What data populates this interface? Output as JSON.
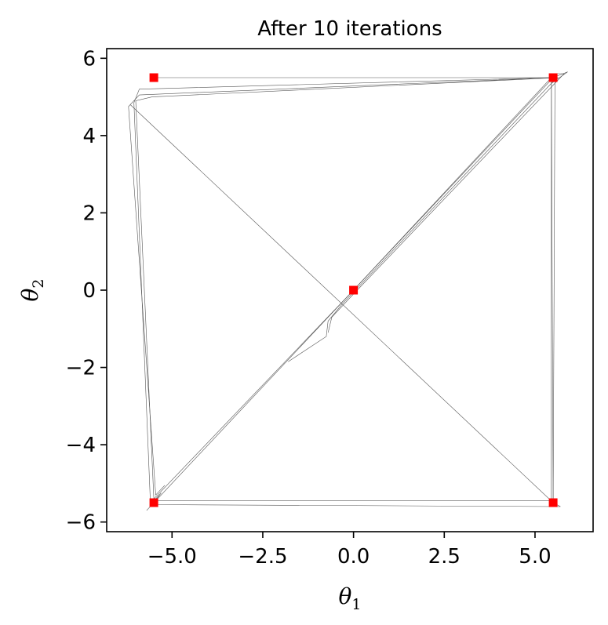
{
  "chart_data": {
    "type": "scatter",
    "title": "After 10 iterations",
    "xlabel": "θ",
    "xlabel_subscript": "1",
    "ylabel": "θ",
    "ylabel_subscript": "2",
    "xlim": [
      -6.8,
      6.6
    ],
    "ylim": [
      -6.25,
      6.25
    ],
    "grid": false,
    "x_ticks": [
      -5.0,
      -2.5,
      0.0,
      2.5,
      5.0
    ],
    "x_tick_labels": [
      "−5.0",
      "−2.5",
      "0.0",
      "2.5",
      "5.0"
    ],
    "y_ticks": [
      -6,
      -4,
      -2,
      0,
      2,
      4,
      6
    ],
    "y_tick_labels": [
      "−6",
      "−4",
      "−2",
      "0",
      "2",
      "4",
      "6"
    ],
    "marker_color": "#ff0000",
    "line_color": "#555555",
    "points": [
      {
        "x": -5.5,
        "y": 5.5
      },
      {
        "x": 5.5,
        "y": 5.5
      },
      {
        "x": 0.0,
        "y": 0.0
      },
      {
        "x": -5.5,
        "y": -5.5
      },
      {
        "x": 5.5,
        "y": -5.5
      }
    ],
    "trajectories": [
      [
        [
          -5.5,
          5.5
        ],
        [
          5.5,
          5.5
        ],
        [
          5.9,
          5.65
        ],
        [
          5.45,
          5.35
        ],
        [
          5.45,
          -5.45
        ],
        [
          -5.5,
          -5.45
        ],
        [
          -5.3,
          -5.25
        ],
        [
          -5.5,
          -5.5
        ]
      ],
      [
        [
          5.5,
          5.5
        ],
        [
          -5.9,
          5.05
        ],
        [
          -6.2,
          4.75
        ],
        [
          -5.45,
          -5.3
        ],
        [
          -5.2,
          -5.05
        ]
      ],
      [
        [
          -6.15,
          4.8
        ],
        [
          5.5,
          -5.5
        ],
        [
          5.45,
          5.5
        ],
        [
          -5.9,
          5.2
        ],
        [
          -6.05,
          4.85
        ],
        [
          -5.6,
          -5.4
        ],
        [
          -5.55,
          -5.5
        ]
      ],
      [
        [
          -5.45,
          -5.55
        ],
        [
          5.7,
          -5.6
        ],
        [
          5.5,
          -5.5
        ],
        [
          5.55,
          5.45
        ],
        [
          -0.3,
          -0.35
        ],
        [
          -0.7,
          -0.8
        ],
        [
          -0.75,
          -1.2
        ],
        [
          -1.8,
          -1.85
        ]
      ],
      [
        [
          -5.7,
          -5.7
        ],
        [
          0.0,
          0.0
        ],
        [
          5.55,
          5.6
        ],
        [
          5.8,
          5.6
        ],
        [
          0.05,
          -0.05
        ],
        [
          -0.6,
          -0.7
        ],
        [
          -0.7,
          -1.1
        ]
      ],
      [
        [
          -5.55,
          -5.45
        ],
        [
          0.0,
          0.0
        ],
        [
          5.5,
          5.5
        ],
        [
          5.65,
          5.5
        ],
        [
          -5.55,
          5.0
        ],
        [
          -6.0,
          4.9
        ],
        [
          -5.5,
          -5.4
        ]
      ]
    ]
  }
}
